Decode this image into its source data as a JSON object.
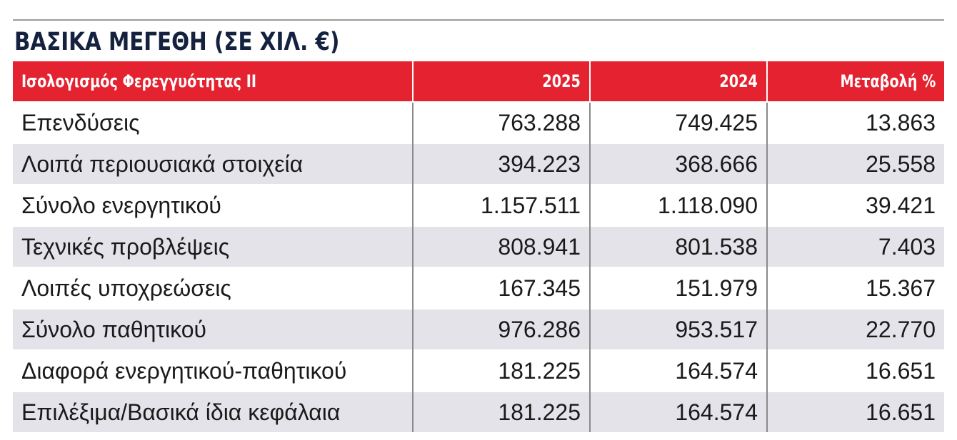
{
  "title": "ΒΑΣΙΚΑ ΜΕΓΕΘΗ (ΣΕ ΧΙΛ. €)",
  "table": {
    "headers": [
      "Ισολογισμός Φερεγγυότητας ΙΙ",
      "2025",
      "2024",
      "Μεταβολή %"
    ],
    "rows": [
      [
        "Επενδύσεις",
        "763.288",
        "749.425",
        "13.863"
      ],
      [
        "Λοιπά περιουσιακά στοιχεία",
        "394.223",
        "368.666",
        "25.558"
      ],
      [
        "Σύνολο ενεργητικού",
        "1.157.511",
        "1.118.090",
        "39.421"
      ],
      [
        "Τεχνικές προβλέψεις",
        "808.941",
        "801.538",
        "7.403"
      ],
      [
        "Λοιπές υποχρεώσεις",
        "167.345",
        "151.979",
        "15.367"
      ],
      [
        "Σύνολο παθητικού",
        "976.286",
        "953.517",
        "22.770"
      ],
      [
        "Διαφορά ενεργητικού-παθητικού",
        "181.225",
        "164.574",
        "16.651"
      ],
      [
        "Επιλέξιμα/Βασικά ίδια κεφάλαια",
        "181.225",
        "164.574",
        "16.651"
      ]
    ]
  },
  "colors": {
    "header_bg": "#e42230",
    "title_color": "#14223f",
    "stripe": "#e4e3ea"
  }
}
